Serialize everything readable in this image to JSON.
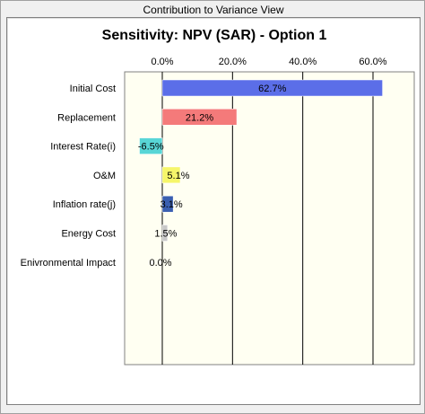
{
  "window": {
    "title": "Contribution to Variance View"
  },
  "colors": {
    "plot_background": "#fffff2",
    "gridline": "#000000",
    "frame_border": "#808080"
  },
  "chart_data": {
    "type": "bar",
    "orientation": "horizontal",
    "title": "Sensitivity: NPV (SAR) - Option 1",
    "xlabel": "",
    "ylabel": "",
    "xlim": [
      -11,
      70
    ],
    "x_ticks": [
      0,
      20,
      40,
      60
    ],
    "x_tick_labels": [
      "0.0%",
      "20.0%",
      "40.0%",
      "60.0%"
    ],
    "grid": true,
    "categories": [
      "Initial Cost",
      "Replacement",
      "Interest Rate(i)",
      "O&M",
      "Inflation rate(j)",
      "Energy Cost",
      "Enivronmental Impact"
    ],
    "values": [
      62.7,
      21.2,
      -6.5,
      5.1,
      3.1,
      1.5,
      0.0
    ],
    "value_labels": [
      "62.7%",
      "21.2%",
      "-6.5%",
      "5.1%",
      "3.1%",
      "1.5%",
      "0.0%"
    ],
    "bar_colors": [
      "#5b6ee8",
      "#f47a7a",
      "#58d6d6",
      "#f6f66a",
      "#3a5fb0",
      "#c8c8c8",
      "#c8c8c8"
    ]
  }
}
